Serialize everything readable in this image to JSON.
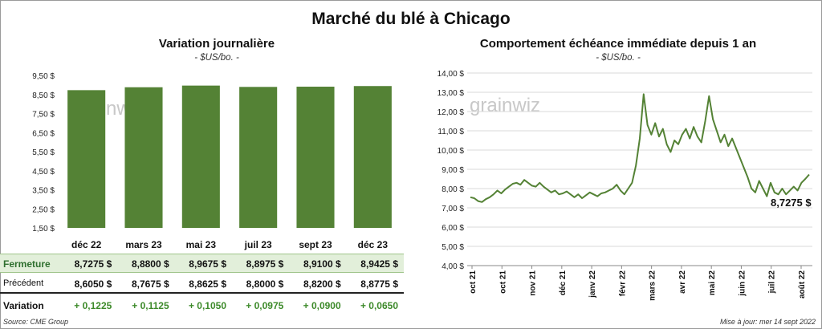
{
  "title": "Marché du blé à Chicago",
  "left_chart": {
    "title": "Variation journalière",
    "subtitle": "- $US/bo. -"
  },
  "right_chart": {
    "title": "Comportement échéance immédiate depuis 1 an",
    "subtitle": "- $US/bo. -",
    "last_value_label": "8,7275 $"
  },
  "watermark": "grainwiz",
  "table": {
    "rows": [
      {
        "label": "Fermeture",
        "values": [
          "8,7275  $",
          "8,8800  $",
          "8,9675  $",
          "8,8975  $",
          "8,9100  $",
          "8,9425  $"
        ]
      },
      {
        "label": "Précédent",
        "values": [
          "8,6050  $",
          "8,7675  $",
          "8,8625  $",
          "8,8000  $",
          "8,8200  $",
          "8,8775  $"
        ]
      },
      {
        "label": "Variation",
        "values": [
          "+ 0,1225",
          "+ 0,1125",
          "+ 0,1050",
          "+ 0,0975",
          "+ 0,0900",
          "+ 0,0650"
        ]
      }
    ]
  },
  "source": "Source: CME Group",
  "updated": "Mise à jour: mer 14 sept 2022",
  "colors": {
    "bar": "#548235",
    "line": "#548235",
    "grid": "#d9d9d9"
  },
  "chart_data": [
    {
      "type": "bar",
      "categories": [
        "déc 22",
        "mars 23",
        "mai 23",
        "juil 23",
        "sept 23",
        "déc 23"
      ],
      "values": [
        8.7275,
        8.88,
        8.9675,
        8.8975,
        8.91,
        8.9425
      ],
      "ylim": [
        1.5,
        9.5
      ],
      "yticks": [
        "1,50 $",
        "2,50 $",
        "3,50 $",
        "4,50 $",
        "5,50 $",
        "6,50 $",
        "7,50 $",
        "8,50 $",
        "9,50 $"
      ],
      "grid": false
    },
    {
      "type": "line",
      "ylim": [
        4,
        14
      ],
      "yticks": [
        "4,00 $",
        "5,00 $",
        "6,00 $",
        "7,00 $",
        "8,00 $",
        "9,00 $",
        "10,00 $",
        "11,00 $",
        "12,00 $",
        "13,00 $",
        "14,00 $"
      ],
      "xticks": [
        "oct 21",
        "oct 21",
        "nov 21",
        "déc 21",
        "janv 22",
        "févr 22",
        "mars 22",
        "avr 22",
        "mai 22",
        "juin 22",
        "juil 22",
        "août 22"
      ],
      "grid": true,
      "values": [
        7.55,
        7.5,
        7.35,
        7.3,
        7.45,
        7.55,
        7.7,
        7.9,
        7.75,
        7.95,
        8.1,
        8.25,
        8.3,
        8.2,
        8.45,
        8.3,
        8.15,
        8.1,
        8.3,
        8.1,
        7.95,
        7.8,
        7.9,
        7.7,
        7.75,
        7.85,
        7.7,
        7.55,
        7.7,
        7.5,
        7.65,
        7.8,
        7.7,
        7.6,
        7.75,
        7.8,
        7.9,
        8.0,
        8.2,
        7.9,
        7.7,
        8.0,
        8.3,
        9.2,
        10.6,
        12.9,
        11.3,
        10.8,
        11.4,
        10.7,
        11.1,
        10.3,
        9.9,
        10.5,
        10.3,
        10.8,
        11.1,
        10.6,
        11.2,
        10.7,
        10.4,
        11.5,
        12.8,
        11.6,
        11.0,
        10.4,
        10.8,
        10.2,
        10.6,
        10.1,
        9.6,
        9.1,
        8.6,
        8.0,
        7.8,
        8.4,
        8.0,
        7.6,
        8.3,
        7.8,
        7.7,
        8.0,
        7.7,
        7.9,
        8.1,
        7.9,
        8.3,
        8.5,
        8.7275
      ]
    }
  ]
}
